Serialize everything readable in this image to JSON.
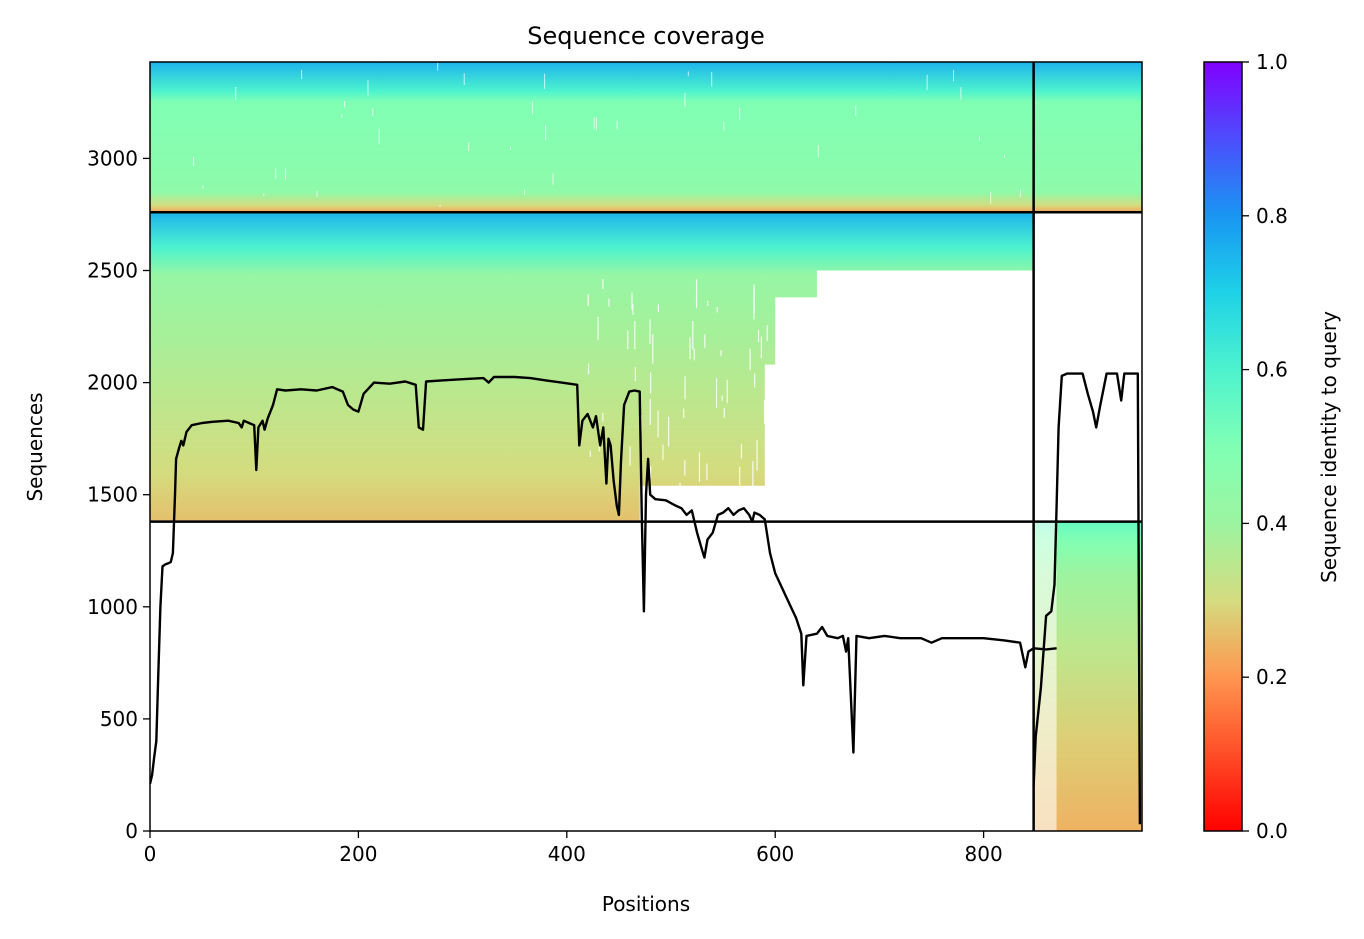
{
  "chart_data": {
    "type": "heatmap",
    "title": "Sequence coverage",
    "xlabel": "Positions",
    "ylabel": "Sequences",
    "colorbar_label": "Sequence identity to query",
    "xlim": [
      0,
      952
    ],
    "ylim": [
      0,
      3430
    ],
    "x_ticks": [
      0,
      200,
      400,
      600,
      800
    ],
    "y_ticks": [
      0,
      500,
      1000,
      1500,
      2000,
      2500,
      3000
    ],
    "colorbar_ticks": [
      "0.0",
      "0.2",
      "0.4",
      "0.6",
      "0.8",
      "1.0"
    ],
    "colormap": "rainbow_r",
    "divider_x": 848,
    "divider_y": [
      1380,
      2760
    ],
    "blocks": [
      {
        "name": "lower-right",
        "x_range": [
          848,
          952
        ],
        "y_range": [
          0,
          1380
        ],
        "coverage_x": [
          [
            848,
            870
          ],
          [
            870,
            952
          ]
        ],
        "identity_by_y": [
          [
            0,
            0.24
          ],
          [
            400,
            0.28
          ],
          [
            800,
            0.34
          ],
          [
            1150,
            0.4
          ],
          [
            1300,
            0.5
          ],
          [
            1380,
            0.55
          ]
        ]
      },
      {
        "name": "middle-left",
        "x_range": [
          0,
          848
        ],
        "y_range": [
          1380,
          2760
        ],
        "identity_by_y": [
          [
            1380,
            0.26
          ],
          [
            1600,
            0.3
          ],
          [
            1900,
            0.34
          ],
          [
            2200,
            0.38
          ],
          [
            2480,
            0.42
          ],
          [
            2600,
            0.6
          ],
          [
            2760,
            0.75
          ]
        ],
        "row_end_by_y": [
          [
            1380,
            470
          ],
          [
            1540,
            590
          ],
          [
            2080,
            600
          ],
          [
            2380,
            640
          ],
          [
            2500,
            848
          ],
          [
            2760,
            848
          ]
        ]
      },
      {
        "name": "top",
        "x_range": [
          0,
          952
        ],
        "y_range": [
          2760,
          3430
        ],
        "identity_by_y": [
          [
            2760,
            0.22
          ],
          [
            2790,
            0.3
          ],
          [
            2850,
            0.45
          ],
          [
            3250,
            0.5
          ],
          [
            3300,
            0.6
          ],
          [
            3430,
            0.75
          ]
        ]
      }
    ],
    "coverage_line": {
      "name": "coverage",
      "color": "#000000",
      "points": [
        [
          0,
          210
        ],
        [
          2,
          250
        ],
        [
          4,
          330
        ],
        [
          6,
          400
        ],
        [
          8,
          700
        ],
        [
          10,
          1000
        ],
        [
          12,
          1180
        ],
        [
          15,
          1190
        ],
        [
          18,
          1195
        ],
        [
          20,
          1200
        ],
        [
          22,
          1240
        ],
        [
          24,
          1500
        ],
        [
          25,
          1660
        ],
        [
          28,
          1710
        ],
        [
          30,
          1740
        ],
        [
          32,
          1720
        ],
        [
          35,
          1780
        ],
        [
          40,
          1810
        ],
        [
          50,
          1820
        ],
        [
          60,
          1825
        ],
        [
          75,
          1830
        ],
        [
          85,
          1820
        ],
        [
          88,
          1800
        ],
        [
          90,
          1830
        ],
        [
          95,
          1820
        ],
        [
          100,
          1810
        ],
        [
          102,
          1610
        ],
        [
          104,
          1800
        ],
        [
          108,
          1830
        ],
        [
          110,
          1790
        ],
        [
          113,
          1840
        ],
        [
          118,
          1900
        ],
        [
          122,
          1970
        ],
        [
          130,
          1965
        ],
        [
          145,
          1970
        ],
        [
          160,
          1965
        ],
        [
          175,
          1980
        ],
        [
          185,
          1960
        ],
        [
          190,
          1900
        ],
        [
          195,
          1880
        ],
        [
          200,
          1870
        ],
        [
          205,
          1950
        ],
        [
          215,
          2000
        ],
        [
          230,
          1995
        ],
        [
          245,
          2005
        ],
        [
          255,
          1990
        ],
        [
          258,
          1800
        ],
        [
          262,
          1790
        ],
        [
          265,
          2005
        ],
        [
          280,
          2010
        ],
        [
          300,
          2015
        ],
        [
          320,
          2020
        ],
        [
          325,
          2000
        ],
        [
          330,
          2025
        ],
        [
          350,
          2025
        ],
        [
          365,
          2020
        ],
        [
          380,
          2010
        ],
        [
          395,
          2000
        ],
        [
          410,
          1990
        ],
        [
          412,
          1720
        ],
        [
          415,
          1830
        ],
        [
          420,
          1860
        ],
        [
          425,
          1800
        ],
        [
          428,
          1850
        ],
        [
          432,
          1720
        ],
        [
          435,
          1800
        ],
        [
          438,
          1550
        ],
        [
          440,
          1750
        ],
        [
          442,
          1720
        ],
        [
          445,
          1560
        ],
        [
          448,
          1450
        ],
        [
          450,
          1410
        ],
        [
          452,
          1650
        ],
        [
          455,
          1900
        ],
        [
          460,
          1960
        ],
        [
          465,
          1965
        ],
        [
          470,
          1960
        ],
        [
          472,
          1400
        ],
        [
          474,
          980
        ],
        [
          476,
          1500
        ],
        [
          478,
          1660
        ],
        [
          480,
          1500
        ],
        [
          485,
          1480
        ],
        [
          495,
          1475
        ],
        [
          505,
          1450
        ],
        [
          510,
          1440
        ],
        [
          515,
          1410
        ],
        [
          520,
          1430
        ],
        [
          525,
          1330
        ],
        [
          530,
          1250
        ],
        [
          532,
          1220
        ],
        [
          535,
          1300
        ],
        [
          540,
          1330
        ],
        [
          545,
          1410
        ],
        [
          550,
          1420
        ],
        [
          555,
          1440
        ],
        [
          560,
          1410
        ],
        [
          565,
          1430
        ],
        [
          570,
          1440
        ],
        [
          575,
          1410
        ],
        [
          578,
          1380
        ],
        [
          580,
          1420
        ],
        [
          585,
          1410
        ],
        [
          590,
          1390
        ],
        [
          595,
          1240
        ],
        [
          600,
          1150
        ],
        [
          605,
          1100
        ],
        [
          610,
          1050
        ],
        [
          615,
          1000
        ],
        [
          620,
          950
        ],
        [
          625,
          880
        ],
        [
          627,
          650
        ],
        [
          630,
          870
        ],
        [
          640,
          880
        ],
        [
          645,
          910
        ],
        [
          650,
          870
        ],
        [
          660,
          860
        ],
        [
          665,
          870
        ],
        [
          668,
          800
        ],
        [
          670,
          860
        ],
        [
          675,
          350
        ],
        [
          678,
          870
        ],
        [
          690,
          860
        ],
        [
          705,
          870
        ],
        [
          720,
          860
        ],
        [
          740,
          860
        ],
        [
          750,
          840
        ],
        [
          760,
          860
        ],
        [
          780,
          860
        ],
        [
          800,
          860
        ],
        [
          820,
          850
        ],
        [
          835,
          840
        ],
        [
          840,
          730
        ],
        [
          843,
          800
        ],
        [
          848,
          815
        ],
        [
          860,
          810
        ],
        [
          870,
          815
        ],
        [
          848,
          200
        ],
        [
          850,
          420
        ],
        [
          855,
          640
        ],
        [
          860,
          960
        ],
        [
          865,
          980
        ],
        [
          868,
          1100
        ],
        [
          870,
          1450
        ],
        [
          872,
          1800
        ],
        [
          875,
          2030
        ],
        [
          880,
          2040
        ],
        [
          895,
          2040
        ],
        [
          900,
          1950
        ],
        [
          905,
          1870
        ],
        [
          908,
          1800
        ],
        [
          912,
          1900
        ],
        [
          918,
          2040
        ],
        [
          928,
          2040
        ],
        [
          932,
          1920
        ],
        [
          935,
          2040
        ],
        [
          945,
          2040
        ],
        [
          948,
          2040
        ],
        [
          950,
          30
        ]
      ]
    }
  }
}
